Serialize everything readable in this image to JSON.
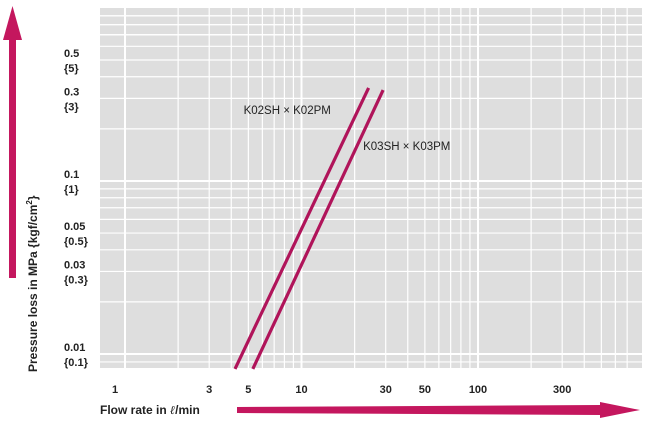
{
  "chart_data": {
    "type": "line",
    "title": "",
    "x_scale": "log",
    "y_scale": "log",
    "xlim": [
      1,
      700
    ],
    "ylim": [
      0.007,
      1.0
    ],
    "grid": true,
    "x_ticks": [
      {
        "value": 1,
        "label": "1"
      },
      {
        "value": 3,
        "label": "3"
      },
      {
        "value": 5,
        "label": "5"
      },
      {
        "value": 10,
        "label": "10"
      },
      {
        "value": 30,
        "label": "30"
      },
      {
        "value": 50,
        "label": "50"
      },
      {
        "value": 100,
        "label": "100"
      },
      {
        "value": 300,
        "label": "300"
      }
    ],
    "y_ticks": [
      {
        "value": 0.5,
        "label": "0.5",
        "sublabel": "{5}"
      },
      {
        "value": 0.3,
        "label": "0.3",
        "sublabel": "{3}"
      },
      {
        "value": 0.1,
        "label": "0.1",
        "sublabel": "{1}"
      },
      {
        "value": 0.05,
        "label": "0.05",
        "sublabel": "{0.5}"
      },
      {
        "value": 0.03,
        "label": "0.03",
        "sublabel": "{0.3}"
      },
      {
        "value": 0.01,
        "label": "0.01",
        "sublabel": "{0.1}"
      }
    ],
    "xlabel_prefix": "Flow rate in ",
    "xlabel_unit_symbol": "ℓ",
    "xlabel_suffix": "/min",
    "ylabel_main": "Pressure loss in MPa {kgf/cm",
    "ylabel_sup": "2",
    "ylabel_end": "}",
    "series": [
      {
        "name": "K02SH × K02PM",
        "x": [
          4.2,
          24
        ],
        "y": [
          0.0082,
          0.345
        ]
      },
      {
        "name": "K03SH × K03PM",
        "x": [
          5.3,
          29
        ],
        "y": [
          0.0082,
          0.335
        ]
      }
    ],
    "colors": {
      "plot_background": "#dedede",
      "grid": "#ffffff",
      "series": "#b0145a",
      "arrow": "#c4175e",
      "text": "#222222"
    }
  }
}
